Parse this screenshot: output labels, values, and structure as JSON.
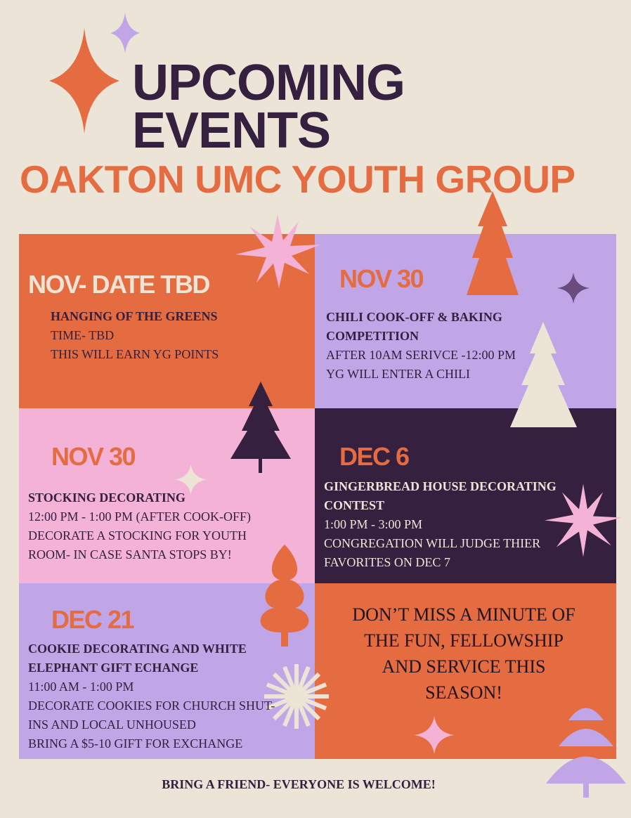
{
  "header": {
    "title_line1": "UPCOMING",
    "title_line2": "EVENTS",
    "subtitle": "OAKTON UMC YOUTH GROUP"
  },
  "colors": {
    "background": "#ebe4d7",
    "dark_purple": "#35203f",
    "orange": "#e56b40",
    "lavender": "#c0a6e6",
    "pink": "#f4b3d6",
    "cream": "#ece5d6"
  },
  "events": [
    {
      "date": "NOV- DATE TBD",
      "title": "HANGING OF THE GREENS",
      "lines": [
        "TIME- TBD",
        "THIS WILL EARN YG POINTS"
      ]
    },
    {
      "date": "NOV 30",
      "title": "CHILI COOK-OFF & BAKING COMPETITION",
      "lines": [
        "AFTER 10AM SERIVCE -12:00 PM",
        "YG WILL ENTER A CHILI"
      ]
    },
    {
      "date": "NOV 30",
      "title": "STOCKING DECORATING",
      "lines": [
        "12:00 PM - 1:00 PM (AFTER COOK-OFF)",
        "DECORATE A STOCKING FOR YOUTH ROOM- IN CASE SANTA STOPS BY!"
      ]
    },
    {
      "date": "DEC 6",
      "title": "GINGERBREAD HOUSE DECORATING CONTEST",
      "lines": [
        "1:00 PM - 3:00 PM",
        "CONGREGATION WILL JUDGE THIER FAVORITES ON DEC 7"
      ]
    },
    {
      "date": "DEC 21",
      "title": "COOKIE DECORATING AND WHITE ELEPHANT GIFT ECHANGE",
      "lines": [
        "11:00 AM - 1:00 PM",
        "DECORATE COOKIES FOR CHURCH SHUT- INS AND LOCAL UNHOUSED",
        "BRING A $5-10 GIFT FOR EXCHANGE"
      ]
    }
  ],
  "cta": "DON’T MISS A MINUTE OF THE FUN, FELLOWSHIP AND SERVICE THIS SEASON!",
  "footer": "BRING A FRIEND- EVERYONE IS WELCOME!",
  "decorations": [
    "sparkle-icon",
    "starburst-icon",
    "tree-icon"
  ]
}
